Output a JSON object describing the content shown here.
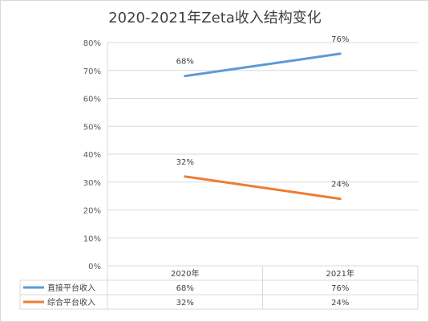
{
  "chart_data": {
    "type": "line",
    "title": "2020-2021年Zeta收入结构变化",
    "categories": [
      "2020年",
      "2021年"
    ],
    "y_ticks": [
      "0%",
      "10%",
      "20%",
      "30%",
      "40%",
      "50%",
      "60%",
      "70%",
      "80%"
    ],
    "ylim": [
      0,
      80
    ],
    "grid": true,
    "legend": "data-table-bottom",
    "series": [
      {
        "name": "直接平台收入",
        "values": [
          68,
          76
        ],
        "labels": [
          "68%",
          "76%"
        ],
        "color": "#5B9BD5"
      },
      {
        "name": "综合平台收入",
        "values": [
          32,
          24
        ],
        "labels": [
          "32%",
          "24%"
        ],
        "color": "#ED7D31"
      }
    ]
  }
}
